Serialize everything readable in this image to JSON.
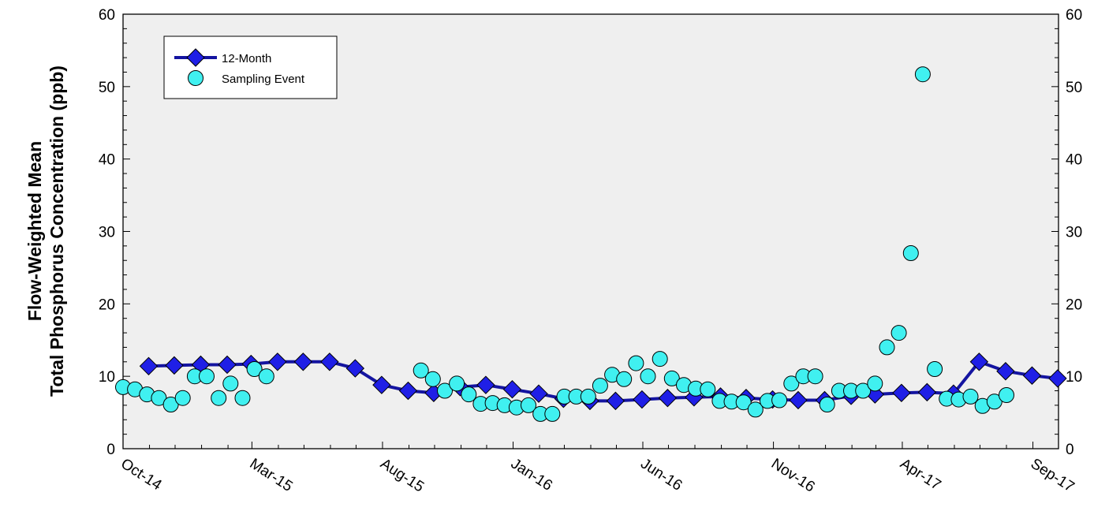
{
  "chart_data": {
    "type": "line",
    "ylabel_line1": "Flow-Weighted Mean",
    "ylabel_line2": "Total Phosphorus Concentration (ppb)",
    "ylim": [
      0,
      60
    ],
    "yticks": [
      0,
      10,
      20,
      30,
      40,
      50,
      60
    ],
    "xlim": [
      "2014-10-01",
      "2017-10-01"
    ],
    "xticks": [
      {
        "date": "2014-10-01",
        "label": "Oct-14"
      },
      {
        "date": "2015-03-01",
        "label": "Mar-15"
      },
      {
        "date": "2015-08-01",
        "label": "Aug-15"
      },
      {
        "date": "2016-01-01",
        "label": "Jan-16"
      },
      {
        "date": "2016-06-01",
        "label": "Jun-16"
      },
      {
        "date": "2016-11-01",
        "label": "Nov-16"
      },
      {
        "date": "2017-04-01",
        "label": "Apr-17"
      },
      {
        "date": "2017-09-01",
        "label": "Sep-17"
      }
    ],
    "grid": false,
    "legend_position": "top-left",
    "series": [
      {
        "name": "12-Month",
        "type": "line",
        "marker": "diamond",
        "color": "#1414a0",
        "marker_color": "#1f1fe6",
        "points": [
          [
            "2014-10-31",
            11.4
          ],
          [
            "2014-11-30",
            11.5
          ],
          [
            "2014-12-31",
            11.6
          ],
          [
            "2015-01-31",
            11.6
          ],
          [
            "2015-02-28",
            11.7
          ],
          [
            "2015-03-31",
            12.0
          ],
          [
            "2015-04-30",
            12.0
          ],
          [
            "2015-05-31",
            12.0
          ],
          [
            "2015-06-30",
            11.1
          ],
          [
            "2015-07-31",
            8.8
          ],
          [
            "2015-08-31",
            8.0
          ],
          [
            "2015-09-30",
            7.7
          ],
          [
            "2015-10-31",
            8.5
          ],
          [
            "2015-11-30",
            8.8
          ],
          [
            "2015-12-31",
            8.2
          ],
          [
            "2016-01-31",
            7.6
          ],
          [
            "2016-02-29",
            6.9
          ],
          [
            "2016-03-31",
            6.6
          ],
          [
            "2016-04-30",
            6.6
          ],
          [
            "2016-05-31",
            6.8
          ],
          [
            "2016-06-30",
            7.0
          ],
          [
            "2016-07-31",
            7.1
          ],
          [
            "2016-08-31",
            7.2
          ],
          [
            "2016-09-30",
            7.0
          ],
          [
            "2016-10-31",
            6.8
          ],
          [
            "2016-11-30",
            6.7
          ],
          [
            "2016-12-31",
            6.7
          ],
          [
            "2017-01-31",
            7.3
          ],
          [
            "2017-02-28",
            7.5
          ],
          [
            "2017-03-31",
            7.7
          ],
          [
            "2017-04-30",
            7.8
          ],
          [
            "2017-05-31",
            7.6
          ],
          [
            "2017-06-30",
            12.0
          ],
          [
            "2017-07-31",
            10.7
          ],
          [
            "2017-08-31",
            10.1
          ],
          [
            "2017-09-30",
            9.7
          ]
        ]
      },
      {
        "name": "Sampling Event",
        "type": "scatter",
        "marker": "circle",
        "color": "#40f0f0",
        "points": [
          [
            "2014-10-01",
            8.5
          ],
          [
            "2014-10-15",
            8.2
          ],
          [
            "2014-10-29",
            7.5
          ],
          [
            "2014-11-12",
            7.0
          ],
          [
            "2014-11-26",
            6.1
          ],
          [
            "2014-12-10",
            7.0
          ],
          [
            "2014-12-24",
            10.0
          ],
          [
            "2015-01-07",
            10.0
          ],
          [
            "2015-01-21",
            7.0
          ],
          [
            "2015-02-04",
            9.0
          ],
          [
            "2015-02-18",
            7.0
          ],
          [
            "2015-03-04",
            11.0
          ],
          [
            "2015-03-18",
            10.0
          ],
          [
            "2015-09-15",
            10.8
          ],
          [
            "2015-09-29",
            9.6
          ],
          [
            "2015-10-13",
            8.0
          ],
          [
            "2015-10-27",
            9.0
          ],
          [
            "2015-11-10",
            7.5
          ],
          [
            "2015-11-24",
            6.2
          ],
          [
            "2015-12-08",
            6.3
          ],
          [
            "2015-12-22",
            6.0
          ],
          [
            "2016-01-05",
            5.7
          ],
          [
            "2016-01-19",
            6.0
          ],
          [
            "2016-02-02",
            4.8
          ],
          [
            "2016-02-16",
            4.8
          ],
          [
            "2016-03-01",
            7.2
          ],
          [
            "2016-03-15",
            7.2
          ],
          [
            "2016-03-29",
            7.2
          ],
          [
            "2016-04-12",
            8.7
          ],
          [
            "2016-04-26",
            10.2
          ],
          [
            "2016-05-10",
            9.6
          ],
          [
            "2016-05-24",
            11.8
          ],
          [
            "2016-06-07",
            10.0
          ],
          [
            "2016-06-21",
            12.4
          ],
          [
            "2016-07-05",
            9.7
          ],
          [
            "2016-07-19",
            8.8
          ],
          [
            "2016-08-02",
            8.3
          ],
          [
            "2016-08-16",
            8.2
          ],
          [
            "2016-08-30",
            6.6
          ],
          [
            "2016-09-13",
            6.5
          ],
          [
            "2016-09-27",
            6.4
          ],
          [
            "2016-10-11",
            5.4
          ],
          [
            "2016-10-25",
            6.6
          ],
          [
            "2016-11-08",
            6.7
          ],
          [
            "2016-11-22",
            9.0
          ],
          [
            "2016-12-06",
            10.0
          ],
          [
            "2016-12-20",
            10.0
          ],
          [
            "2017-01-03",
            6.1
          ],
          [
            "2017-01-17",
            8.0
          ],
          [
            "2017-01-31",
            8.0
          ],
          [
            "2017-02-14",
            8.0
          ],
          [
            "2017-02-28",
            9.0
          ],
          [
            "2017-03-14",
            14.0
          ],
          [
            "2017-03-28",
            16.0
          ],
          [
            "2017-04-11",
            27.0
          ],
          [
            "2017-04-25",
            51.7
          ],
          [
            "2017-05-09",
            11.0
          ],
          [
            "2017-05-23",
            6.9
          ],
          [
            "2017-06-06",
            6.8
          ],
          [
            "2017-06-20",
            7.2
          ],
          [
            "2017-07-04",
            5.9
          ],
          [
            "2017-07-18",
            6.5
          ],
          [
            "2017-08-01",
            7.4
          ]
        ]
      }
    ]
  }
}
